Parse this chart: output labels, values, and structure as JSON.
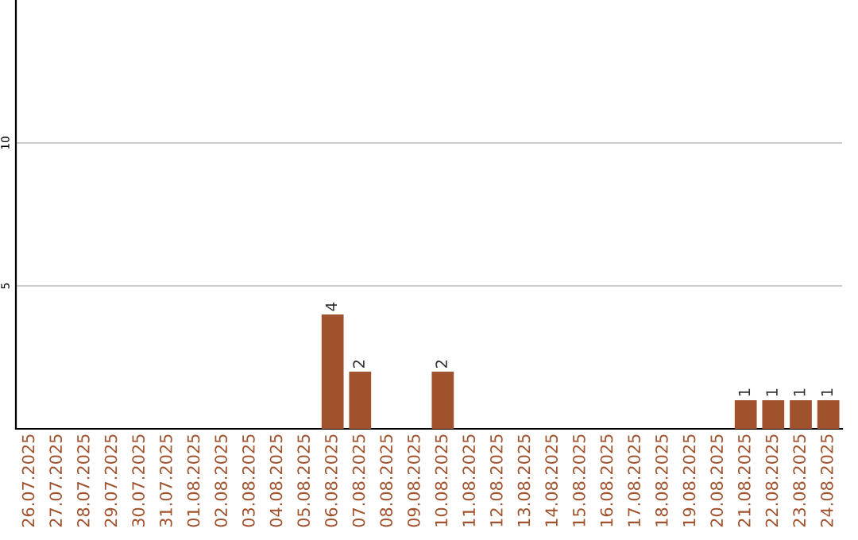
{
  "chart_data": {
    "type": "bar",
    "categories": [
      "26.07.2025",
      "27.07.2025",
      "28.07.2025",
      "29.07.2025",
      "30.07.2025",
      "31.07.2025",
      "01.08.2025",
      "02.08.2025",
      "03.08.2025",
      "04.08.2025",
      "05.08.2025",
      "06.08.2025",
      "07.08.2025",
      "08.08.2025",
      "09.08.2025",
      "10.08.2025",
      "11.08.2025",
      "12.08.2025",
      "13.08.2025",
      "14.08.2025",
      "15.08.2025",
      "16.08.2025",
      "17.08.2025",
      "18.08.2025",
      "19.08.2025",
      "20.08.2025",
      "21.08.2025",
      "22.08.2025",
      "23.08.2025",
      "24.08.2025"
    ],
    "values": [
      0,
      0,
      0,
      0,
      0,
      0,
      0,
      0,
      0,
      0,
      0,
      4,
      2,
      0,
      0,
      2,
      0,
      0,
      0,
      0,
      0,
      0,
      0,
      0,
      0,
      0,
      1,
      1,
      1,
      1
    ],
    "value_labels": [
      null,
      null,
      null,
      null,
      null,
      null,
      null,
      null,
      null,
      null,
      null,
      "4",
      "2",
      null,
      null,
      "2",
      null,
      null,
      null,
      null,
      null,
      null,
      null,
      null,
      null,
      null,
      "1",
      "1",
      "1",
      "1"
    ],
    "color": "#a0522d",
    "ylim": [
      0,
      15
    ],
    "yticks": [
      5,
      10
    ],
    "grid": "y"
  }
}
